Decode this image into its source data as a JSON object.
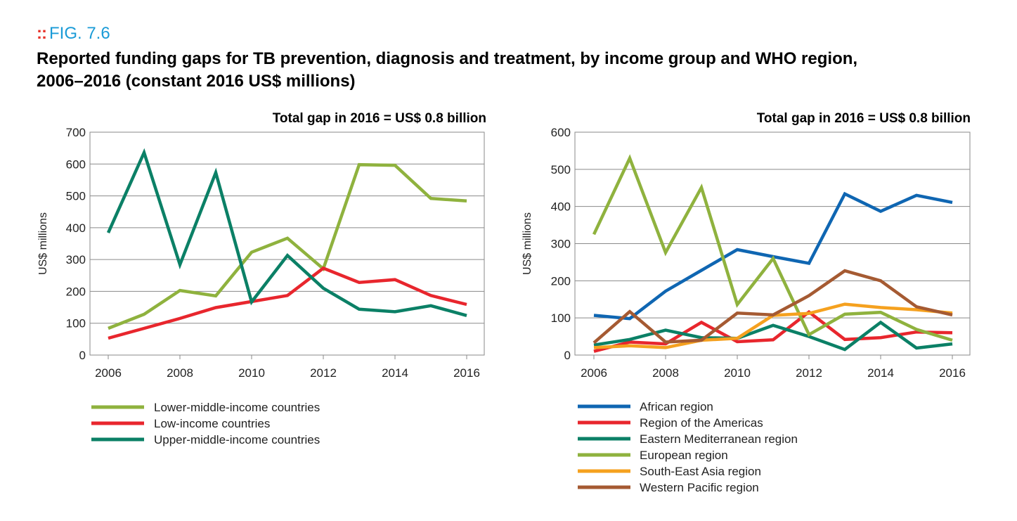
{
  "header": {
    "fig_label": "FIG. 7.6",
    "title_line1": "Reported funding gaps for TB prevention, diagnosis and treatment, by income group and WHO region,",
    "title_line2": "2006–2016 (constant 2016 US$ millions)"
  },
  "chart_data": [
    {
      "type": "line",
      "title": "Total gap in 2016 = US$ 0.8 billion",
      "ylabel": "US$ millions",
      "xlabel": "",
      "x": [
        2006,
        2007,
        2008,
        2009,
        2010,
        2011,
        2012,
        2013,
        2014,
        2015,
        2016
      ],
      "xticks": [
        2006,
        2008,
        2010,
        2012,
        2014,
        2016
      ],
      "ylim": [
        0,
        700
      ],
      "yticks": [
        0,
        100,
        200,
        300,
        400,
        500,
        600,
        700
      ],
      "grid": true,
      "legend_position": "bottom",
      "series": [
        {
          "name": "Lower-middle-income countries",
          "color": "#8fb23e",
          "values": [
            84,
            128,
            203,
            186,
            323,
            367,
            271,
            598,
            596,
            492,
            484
          ]
        },
        {
          "name": "Low-income countries",
          "color": "#e8262d",
          "values": [
            53,
            84,
            115,
            149,
            168,
            187,
            273,
            228,
            237,
            187,
            159
          ]
        },
        {
          "name": "Upper-middle-income countries",
          "color": "#0b8066",
          "values": [
            384,
            636,
            284,
            573,
            167,
            313,
            210,
            144,
            136,
            155,
            124
          ]
        }
      ]
    },
    {
      "type": "line",
      "title": "Total gap in 2016 = US$ 0.8 billion",
      "ylabel": "US$ millions",
      "xlabel": "",
      "x": [
        2006,
        2007,
        2008,
        2009,
        2010,
        2011,
        2012,
        2013,
        2014,
        2015,
        2016
      ],
      "xticks": [
        2006,
        2008,
        2010,
        2012,
        2014,
        2016
      ],
      "ylim": [
        0,
        600
      ],
      "yticks": [
        0,
        100,
        200,
        300,
        400,
        500,
        600
      ],
      "grid": true,
      "legend_position": "bottom",
      "series": [
        {
          "name": "African region",
          "color": "#0f66b2",
          "values": [
            107,
            98,
            172,
            228,
            284,
            265,
            247,
            434,
            387,
            430,
            411
          ]
        },
        {
          "name": "Region of the Americas",
          "color": "#e8262d",
          "values": [
            10,
            35,
            30,
            88,
            36,
            41,
            116,
            42,
            47,
            62,
            60
          ]
        },
        {
          "name": "Eastern Mediterranean region",
          "color": "#0b8066",
          "values": [
            27,
            42,
            67,
            47,
            45,
            80,
            50,
            15,
            88,
            19,
            30
          ]
        },
        {
          "name": "European region",
          "color": "#8fb23e",
          "values": [
            325,
            530,
            276,
            451,
            136,
            260,
            55,
            110,
            115,
            69,
            40
          ]
        },
        {
          "name": "South-East Asia region",
          "color": "#f5a11f",
          "values": [
            20,
            25,
            20,
            40,
            45,
            107,
            112,
            137,
            128,
            122,
            113
          ]
        },
        {
          "name": "Western Pacific region",
          "color": "#a55a32",
          "values": [
            33,
            117,
            35,
            40,
            113,
            108,
            160,
            227,
            200,
            130,
            108
          ]
        }
      ]
    }
  ]
}
